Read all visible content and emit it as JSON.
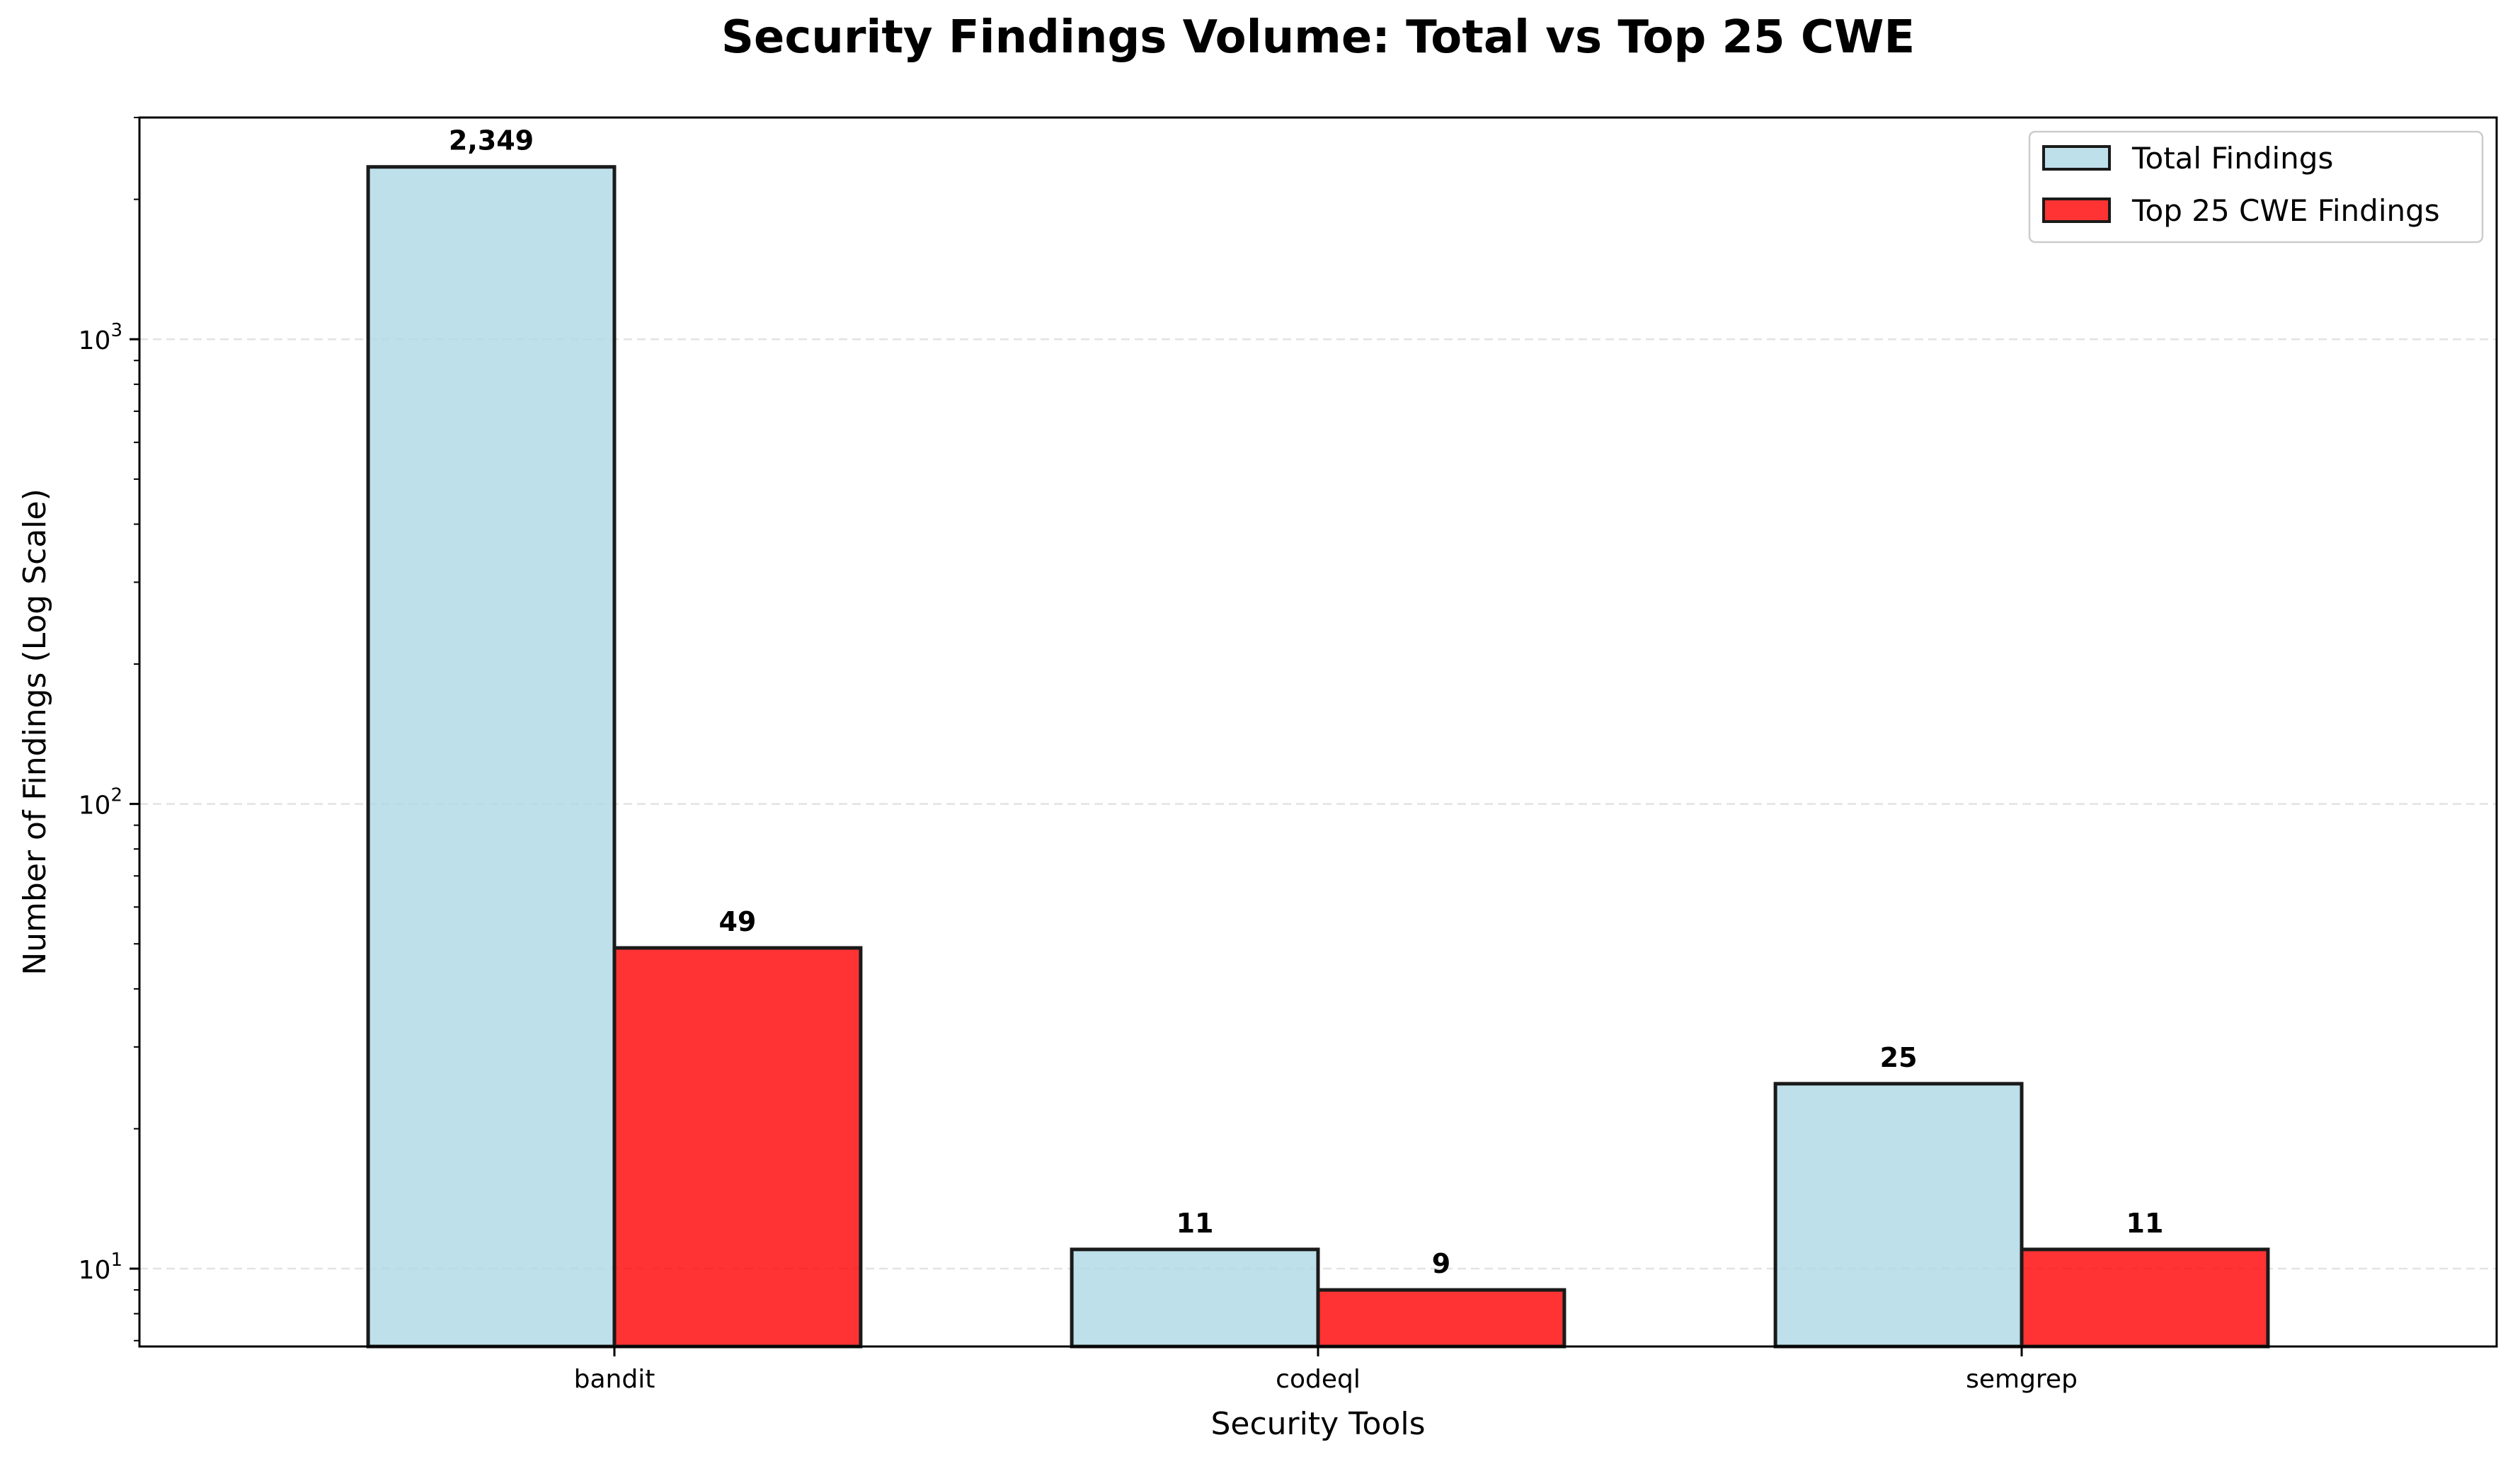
{
  "chart_data": {
    "type": "bar",
    "title": "Security Findings Volume: Total vs Top 25 CWE",
    "xlabel": "Security Tools",
    "ylabel": "Number of Findings (Log Scale)",
    "yscale": "log",
    "ylim": [
      6.8,
      3000
    ],
    "yticks": [
      {
        "value": 10,
        "base": "10",
        "exp": "1"
      },
      {
        "value": 100,
        "base": "10",
        "exp": "2"
      },
      {
        "value": 1000,
        "base": "10",
        "exp": "3"
      }
    ],
    "categories": [
      "bandit",
      "codeql",
      "semgrep"
    ],
    "series": [
      {
        "name": "Total Findings",
        "values": [
          2349,
          11,
          25
        ],
        "labels": [
          "2,349",
          "11",
          "25"
        ],
        "color": "#add8e6"
      },
      {
        "name": "Top 25 CWE Findings",
        "values": [
          49,
          9,
          11
        ],
        "labels": [
          "49",
          "9",
          "11"
        ],
        "color": "#ff0000"
      }
    ],
    "grid": "y-dashed",
    "legend_position": "top-right"
  }
}
